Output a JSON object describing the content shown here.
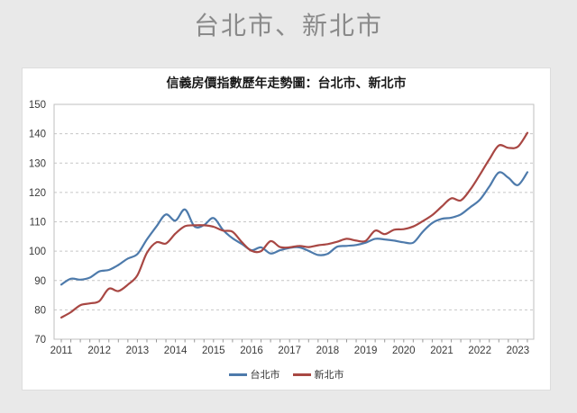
{
  "page": {
    "title": "台北市、新北市",
    "background": "#e9e9e9",
    "title_color": "#8a8a8a"
  },
  "chart_data": {
    "type": "line",
    "title": "信義房價指數歷年走勢圖：台北市、新北市",
    "x_start_year": 2011,
    "points_per_year": 4,
    "x_tick_labels": [
      "2011",
      "2012",
      "2013",
      "2014",
      "2015",
      "2016",
      "2017",
      "2018",
      "2019",
      "2020",
      "2021",
      "2022",
      "2023"
    ],
    "y_ticks": [
      70,
      80,
      90,
      100,
      110,
      120,
      130,
      140,
      150
    ],
    "ylim": [
      70,
      150
    ],
    "grid": "horizontal-dashed",
    "gridline_color": "#c6c6c6",
    "axis_color": "#bfbfbf",
    "tick_color": "#999999",
    "label_color": "#3a3a3a",
    "legend_position": "bottom-center",
    "series": [
      {
        "name": "台北市",
        "slug": "taipei-city",
        "color": "#4d7aab",
        "values": [
          88.6,
          90.6,
          90.3,
          91.0,
          93.1,
          93.6,
          95.3,
          97.5,
          99.0,
          104.0,
          108.4,
          112.5,
          110.4,
          114.2,
          108.4,
          108.9,
          111.3,
          107.2,
          104.4,
          102.4,
          100.3,
          101.3,
          99.2,
          100.3,
          101.1,
          101.3,
          100.1,
          98.7,
          99.1,
          101.5,
          101.8,
          102.1,
          102.9,
          104.2,
          104.0,
          103.6,
          103.0,
          102.9,
          106.6,
          109.6,
          111.0,
          111.4,
          112.5,
          115.0,
          117.5,
          122.0,
          126.8,
          125.0,
          122.5,
          126.9
        ]
      },
      {
        "name": "新北市",
        "slug": "new-taipei-city",
        "color": "#a84743",
        "values": [
          77.4,
          79.2,
          81.6,
          82.2,
          83.0,
          87.2,
          86.4,
          88.6,
          91.8,
          99.4,
          103.0,
          102.6,
          106.0,
          108.5,
          108.8,
          108.8,
          108.3,
          107.0,
          106.6,
          103.0,
          100.1,
          100.0,
          103.4,
          101.4,
          101.3,
          101.8,
          101.4,
          102.0,
          102.4,
          103.2,
          104.2,
          103.6,
          103.5,
          107.0,
          105.8,
          107.3,
          107.5,
          108.4,
          110.2,
          112.3,
          115.2,
          118.0,
          117.3,
          121.0,
          126.0,
          131.3,
          136.0,
          135.2,
          135.6,
          140.3
        ]
      }
    ]
  },
  "legend": {
    "items": [
      {
        "label": "台北市"
      },
      {
        "label": "新北市"
      }
    ]
  }
}
